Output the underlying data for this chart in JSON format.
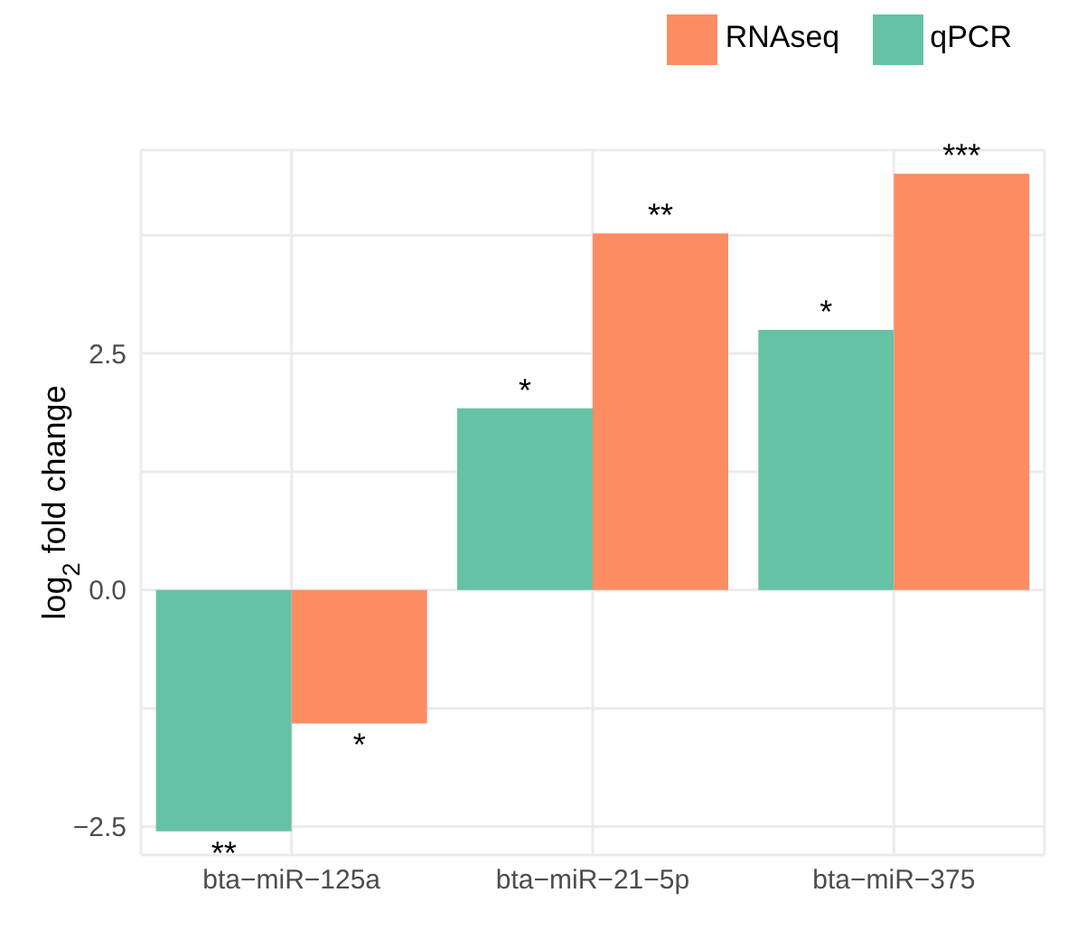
{
  "chart_data": {
    "type": "bar",
    "ylabel": "log$_{2}$ fold change",
    "categories": [
      "bta−miR−125a",
      "bta−miR−21−5p",
      "bta−miR−375"
    ],
    "series": [
      {
        "name": "qPCR",
        "color": "#66c2a5",
        "values": [
          -2.55,
          1.92,
          2.75
        ]
      },
      {
        "name": "RNAseq",
        "color": "#fc8d62",
        "values": [
          -1.41,
          3.77,
          4.4
        ]
      }
    ],
    "ylim": [
      -2.8,
      4.65
    ],
    "yticks": [
      {
        "value": -2.5,
        "label": "−2.5"
      },
      {
        "value": -1.25,
        "label": null
      },
      "0.0",
      {
        "value": 1.25,
        "label": null
      },
      {
        "value": 2.5,
        "label": "2.5"
      },
      {
        "value": 3.75,
        "label": null
      }
    ],
    "annotations": [
      {
        "text": "**",
        "x": "bta−miR−125a",
        "y": -2.55
      },
      {
        "text": "*",
        "x": "bta−miR−125a",
        "y": -1.41
      },
      {
        "text": "*",
        "x": "bta−miR−21−5p",
        "y": 1.92
      },
      {
        "text": "**",
        "x": "bta−miR−21−5p",
        "y": 3.77
      },
      {
        "text": "*",
        "x": "bta−miR−375",
        "y": 2.75
      },
      {
        "text": "***",
        "x": "bta−miR−375",
        "y": 4.4
      }
    ],
    "grid": true,
    "legend": "top right"
  }
}
